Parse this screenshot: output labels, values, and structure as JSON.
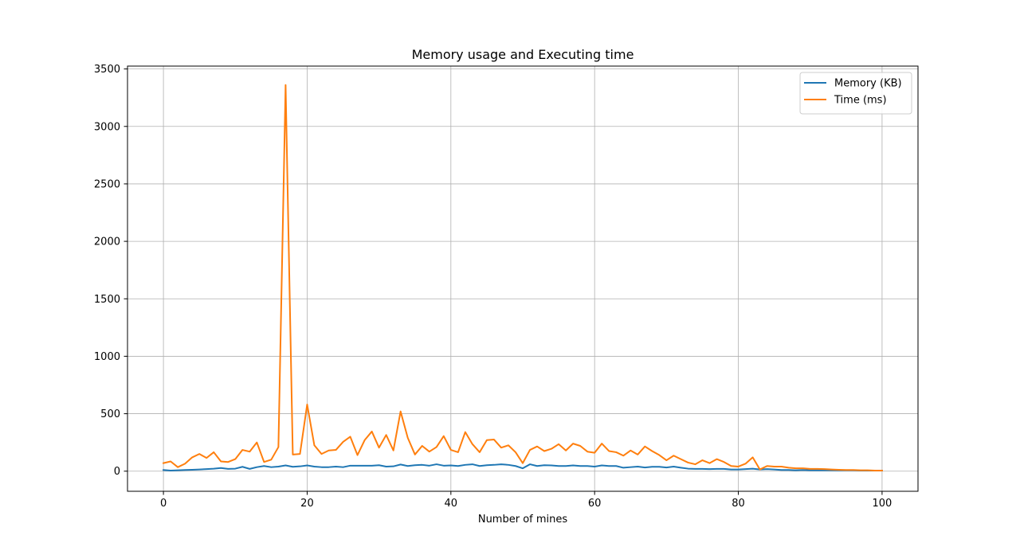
{
  "chart_data": {
    "type": "line",
    "title": "Memory usage and Executing time",
    "xlabel": "Number of mines",
    "ylabel": "",
    "xlim": [
      -5,
      105
    ],
    "ylim": [
      -175,
      3525
    ],
    "xticks": [
      0,
      20,
      40,
      60,
      80,
      100
    ],
    "yticks": [
      0,
      500,
      1000,
      1500,
      2000,
      2500,
      3000,
      3500
    ],
    "grid": true,
    "legend_position": "top-right",
    "x": [
      0,
      1,
      2,
      3,
      4,
      5,
      6,
      7,
      8,
      9,
      10,
      11,
      12,
      13,
      14,
      15,
      16,
      17,
      18,
      19,
      20,
      21,
      22,
      23,
      24,
      25,
      26,
      27,
      28,
      29,
      30,
      31,
      32,
      33,
      34,
      35,
      36,
      37,
      38,
      39,
      40,
      41,
      42,
      43,
      44,
      45,
      46,
      47,
      48,
      49,
      50,
      51,
      52,
      53,
      54,
      55,
      56,
      57,
      58,
      59,
      60,
      61,
      62,
      63,
      64,
      65,
      66,
      67,
      68,
      69,
      70,
      71,
      72,
      73,
      74,
      75,
      76,
      77,
      78,
      79,
      80,
      81,
      82,
      83,
      84,
      85,
      86,
      87,
      88,
      89,
      90,
      91,
      92,
      93,
      94,
      95,
      96,
      97,
      98,
      99,
      100
    ],
    "series": [
      {
        "name": "Memory (KB)",
        "color": "#1f77b4",
        "values": [
          10,
          5,
          8,
          10,
          12,
          15,
          18,
          22,
          28,
          20,
          22,
          38,
          20,
          35,
          45,
          35,
          40,
          50,
          38,
          42,
          50,
          40,
          35,
          35,
          40,
          35,
          48,
          48,
          48,
          48,
          52,
          40,
          42,
          58,
          45,
          52,
          55,
          48,
          60,
          48,
          50,
          45,
          55,
          60,
          45,
          52,
          55,
          60,
          55,
          45,
          25,
          60,
          45,
          52,
          50,
          45,
          45,
          50,
          45,
          45,
          40,
          50,
          45,
          45,
          30,
          35,
          40,
          32,
          38,
          38,
          32,
          40,
          30,
          22,
          20,
          20,
          18,
          20,
          20,
          15,
          15,
          18,
          22,
          15,
          18,
          15,
          10,
          10,
          8,
          10,
          8,
          8,
          8,
          8,
          8,
          8,
          8,
          5,
          5,
          5,
          5
        ]
      },
      {
        "name": "Time (ms)",
        "color": "#ff7f0e",
        "values": [
          70,
          85,
          35,
          65,
          120,
          150,
          115,
          165,
          85,
          80,
          105,
          185,
          170,
          250,
          80,
          100,
          210,
          3360,
          145,
          150,
          580,
          225,
          150,
          180,
          185,
          255,
          300,
          140,
          270,
          345,
          205,
          315,
          180,
          520,
          290,
          145,
          220,
          170,
          210,
          305,
          185,
          165,
          340,
          235,
          165,
          270,
          275,
          205,
          225,
          165,
          70,
          185,
          215,
          175,
          195,
          235,
          180,
          240,
          220,
          170,
          160,
          240,
          175,
          165,
          135,
          180,
          145,
          215,
          175,
          140,
          95,
          135,
          105,
          75,
          60,
          95,
          70,
          105,
          80,
          45,
          40,
          65,
          120,
          15,
          45,
          40,
          40,
          30,
          25,
          25,
          20,
          20,
          18,
          15,
          12,
          10,
          10,
          8,
          8,
          5,
          5
        ]
      }
    ]
  }
}
